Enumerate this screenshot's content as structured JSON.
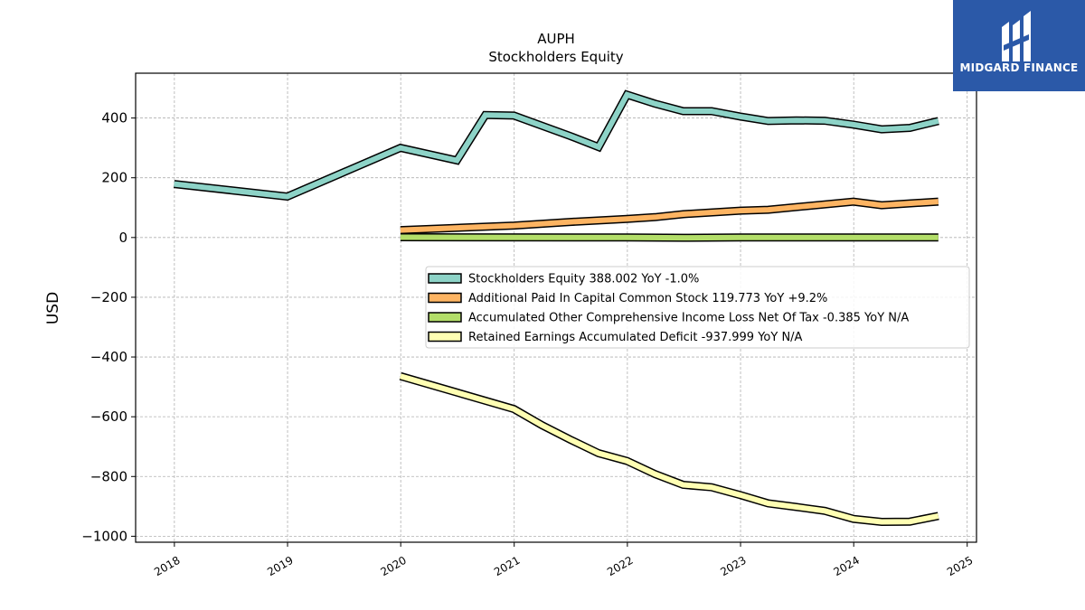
{
  "brand": {
    "name": "MIDGARD FINANCE",
    "bg_color": "#2b59a8"
  },
  "chart_data": {
    "type": "line",
    "title": "AUPH",
    "subtitle": "Stockholders  Equity",
    "ylabel": "USD",
    "xlabel": "",
    "x_ticks": [
      "2018",
      "2019",
      "2020",
      "2021",
      "2022",
      "2023",
      "2024",
      "2025"
    ],
    "y_ticks": [
      "400",
      "200",
      "0",
      "−200",
      "−400",
      "−600",
      "−800",
      "−1000"
    ],
    "xlim": [
      "2017-08-29",
      "2025-01-31"
    ],
    "ylim": [
      -1020,
      550
    ],
    "grid": true,
    "legend_position": "center-right",
    "series": [
      {
        "name": "Stockholders Equity  388.002 YoY -1.0%",
        "color": "#8dd3c7",
        "points": [
          [
            "2017-12-31",
            179
          ],
          [
            "2018-12-31",
            137
          ],
          [
            "2019-12-31",
            300
          ],
          [
            "2020-06-30",
            258
          ],
          [
            "2020-09-30",
            410
          ],
          [
            "2020-12-31",
            408
          ],
          [
            "2021-06-30",
            340
          ],
          [
            "2021-09-30",
            303
          ],
          [
            "2021-12-31",
            478
          ],
          [
            "2022-03-31",
            448
          ],
          [
            "2022-06-30",
            423
          ],
          [
            "2022-09-30",
            423
          ],
          [
            "2022-12-31",
            405
          ],
          [
            "2023-03-31",
            390
          ],
          [
            "2023-06-30",
            392
          ],
          [
            "2023-09-30",
            391
          ],
          [
            "2023-12-31",
            378
          ],
          [
            "2024-03-31",
            362
          ],
          [
            "2024-06-30",
            367
          ],
          [
            "2024-09-30",
            390
          ]
        ]
      },
      {
        "name": "Additional Paid In Capital Common Stock  119.773 YoY +9.2%",
        "color": "#fdb462",
        "points": [
          [
            "2019-12-31",
            25
          ],
          [
            "2020-12-31",
            40
          ],
          [
            "2021-06-30",
            52
          ],
          [
            "2021-12-31",
            62
          ],
          [
            "2022-03-31",
            68
          ],
          [
            "2022-06-30",
            78
          ],
          [
            "2022-12-31",
            90
          ],
          [
            "2023-03-31",
            93
          ],
          [
            "2023-12-31",
            120
          ],
          [
            "2024-03-31",
            108
          ],
          [
            "2024-09-30",
            120
          ]
        ]
      },
      {
        "name": "Accumulated Other Comprehensive Income Loss Net Of Tax  -0.385 YoY N/A",
        "color": "#b3de69",
        "points": [
          [
            "2019-12-31",
            1
          ],
          [
            "2021-12-31",
            0
          ],
          [
            "2022-06-30",
            -1
          ],
          [
            "2022-12-31",
            0
          ],
          [
            "2024-09-30",
            0
          ]
        ]
      },
      {
        "name": "Retained Earnings Accumulated Deficit  -937.999 YoY N/A",
        "color": "#ffffb3",
        "points": [
          [
            "2019-12-31",
            -464
          ],
          [
            "2020-12-31",
            -574
          ],
          [
            "2021-03-31",
            -628
          ],
          [
            "2021-06-30",
            -676
          ],
          [
            "2021-09-30",
            -722
          ],
          [
            "2021-12-31",
            -748
          ],
          [
            "2022-03-31",
            -792
          ],
          [
            "2022-06-30",
            -828
          ],
          [
            "2022-09-30",
            -836
          ],
          [
            "2022-12-31",
            -862
          ],
          [
            "2023-03-31",
            -890
          ],
          [
            "2023-06-30",
            -902
          ],
          [
            "2023-09-30",
            -915
          ],
          [
            "2023-12-31",
            -942
          ],
          [
            "2024-03-31",
            -952
          ],
          [
            "2024-06-30",
            -951
          ],
          [
            "2024-09-30",
            -932
          ]
        ]
      }
    ]
  }
}
